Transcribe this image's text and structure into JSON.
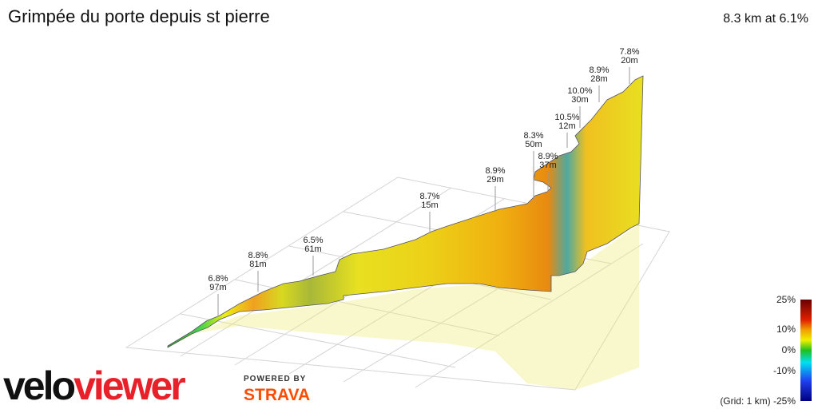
{
  "header": {
    "title": "Grimpée du porte depuis st pierre",
    "summary": "8.3 km at 6.1%"
  },
  "annotations": [
    {
      "grade": "6.8%",
      "length": "97m"
    },
    {
      "grade": "8.8%",
      "length": "81m"
    },
    {
      "grade": "6.5%",
      "length": "61m"
    },
    {
      "grade": "8.7%",
      "length": "15m"
    },
    {
      "grade": "8.9%",
      "length": "29m"
    },
    {
      "grade": "8.3%",
      "length": "50m"
    },
    {
      "grade": "8.9%",
      "length": "37m"
    },
    {
      "grade": "10.5%",
      "length": "12m"
    },
    {
      "grade": "10.0%",
      "length": "30m"
    },
    {
      "grade": "8.9%",
      "length": "28m"
    },
    {
      "grade": "7.8%",
      "length": "20m"
    }
  ],
  "legend": {
    "labels": [
      "25%",
      "10%",
      "0%",
      "-10%",
      "(Grid: 1 km) -25%"
    ]
  },
  "branding": {
    "logo_a": "velo",
    "logo_b": "viewer",
    "powered": "POWERED BY",
    "partner": "STRAVA"
  }
}
